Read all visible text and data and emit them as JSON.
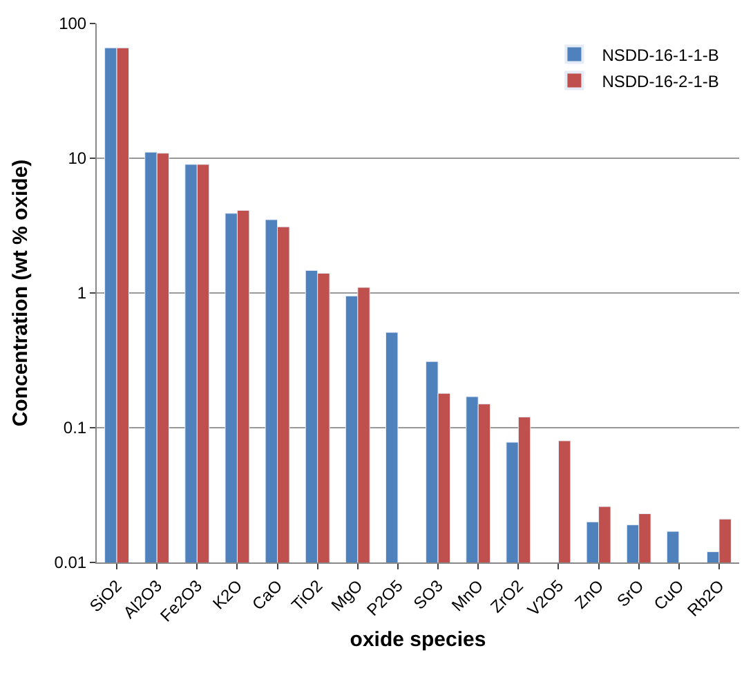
{
  "chart_data": {
    "type": "bar",
    "xlabel": "oxide species",
    "ylabel": "Concentration (wt % oxide)",
    "categories": [
      "SiO2",
      "Al2O3",
      "Fe2O3",
      "K2O",
      "CaO",
      "TiO2",
      "MgO",
      "P2O5",
      "SO3",
      "MnO",
      "ZrO2",
      "V2O5",
      "ZnO",
      "SrO",
      "CuO",
      "Rb2O"
    ],
    "series": [
      {
        "name": "NSDD-16-1-1-B",
        "color": "#4f81bd",
        "values": [
          66,
          11.1,
          9.0,
          3.9,
          3.5,
          1.47,
          0.95,
          0.51,
          0.31,
          0.17,
          0.078,
          null,
          0.02,
          0.019,
          0.017,
          0.012
        ]
      },
      {
        "name": "NSDD-16-2-1-B",
        "color": "#c0504d",
        "values": [
          66,
          10.9,
          9.0,
          4.1,
          3.1,
          1.4,
          1.1,
          null,
          0.18,
          0.15,
          0.12,
          0.08,
          0.026,
          0.023,
          null,
          0.021
        ]
      }
    ],
    "log": "y",
    "ylim": [
      0.01,
      100
    ],
    "yticks": [
      {
        "value": 0.01,
        "label": "0.01"
      },
      {
        "value": 0.1,
        "label": "0.1"
      },
      1,
      10,
      100
    ],
    "grid": "y",
    "legend": "top right"
  }
}
